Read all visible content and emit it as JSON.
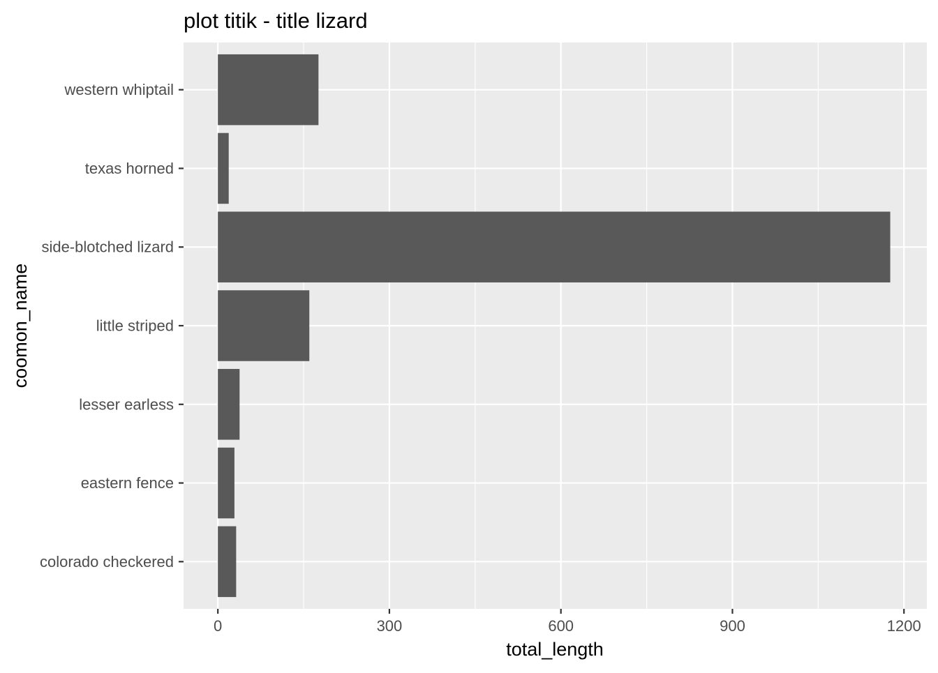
{
  "chart_data": {
    "type": "bar",
    "orientation": "horizontal",
    "title": "plot titik - title lizard",
    "xlabel": "total_length",
    "ylabel": "coomon_name",
    "categories": [
      "colorado checkered",
      "eastern fence",
      "lesser earless",
      "little striped",
      "side-blotched lizard",
      "texas horned",
      "western whiptail"
    ],
    "values": [
      32,
      29,
      38,
      160,
      1176,
      19,
      176
    ],
    "xlim": [
      -60,
      1240
    ],
    "xticks": [
      0,
      300,
      600,
      900,
      1200
    ],
    "xtick_labels": [
      "0",
      "300",
      "600",
      "900",
      "1200"
    ],
    "grid": true,
    "legend": "none",
    "colors": {
      "bar": "#595959",
      "panel": "#ebebeb",
      "grid": "#ffffff",
      "tick_text": "#4d4d4d",
      "tick_mark": "#333333"
    }
  }
}
